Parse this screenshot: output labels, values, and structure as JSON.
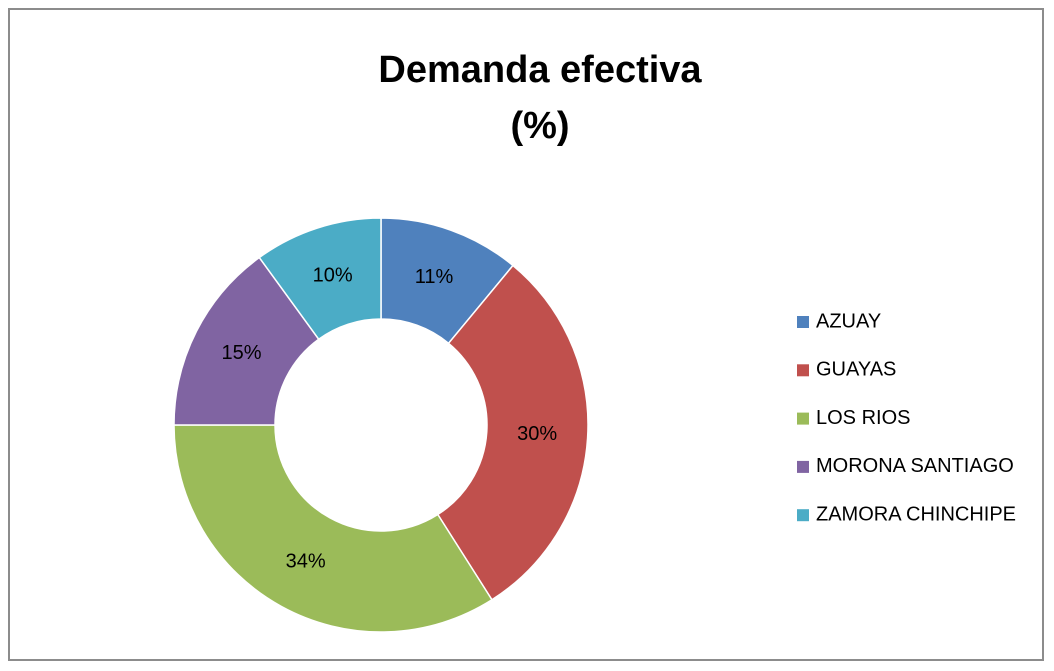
{
  "chart_data": {
    "type": "donut",
    "title": "Demanda efectiva\n(%)",
    "categories": [
      "AZUAY",
      "GUAYAS",
      "LOS RIOS",
      "MORONA SANTIAGO",
      "ZAMORA CHINCHIPE"
    ],
    "values": [
      11,
      30,
      34,
      15,
      10
    ],
    "value_labels": [
      "11%",
      "30%",
      "34%",
      "15%",
      "10%"
    ],
    "colors": [
      "#4f81bd",
      "#c0504d",
      "#9bbb59",
      "#8064a2",
      "#4bacc6"
    ],
    "legend": "right"
  }
}
